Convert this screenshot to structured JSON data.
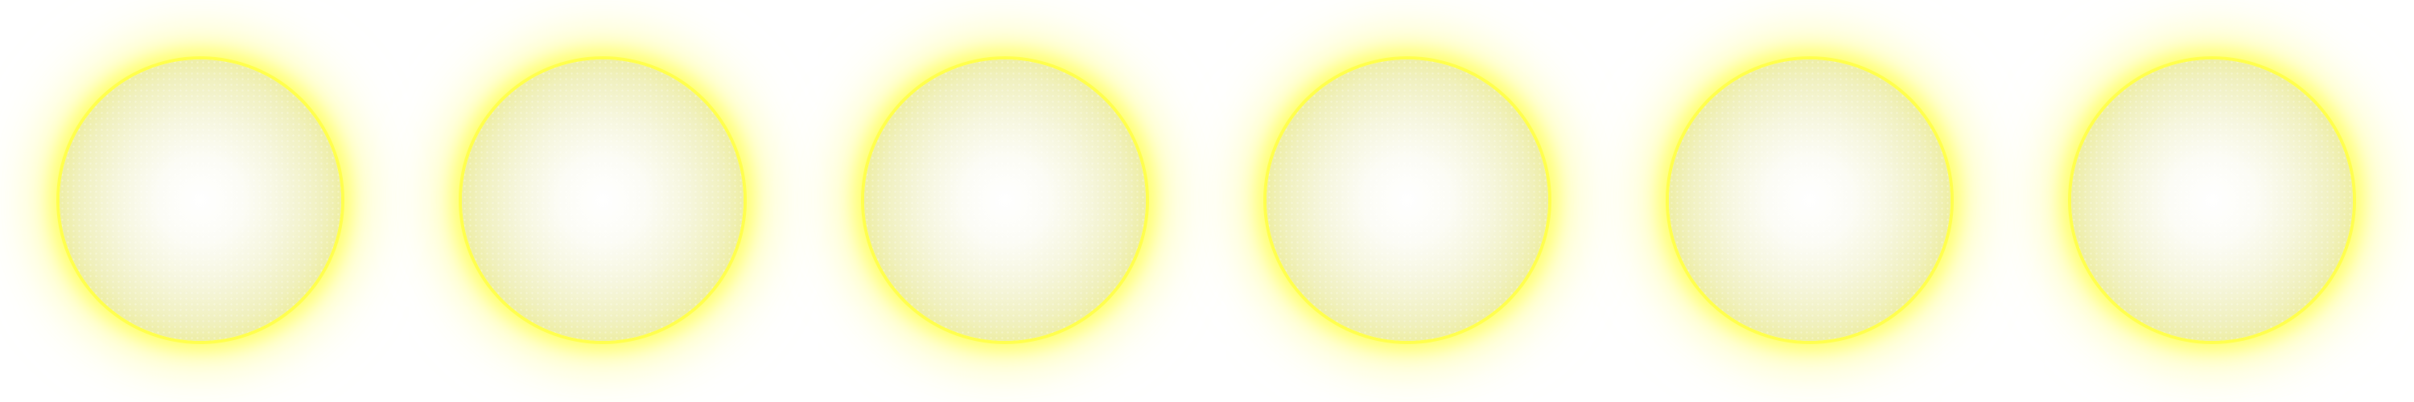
{
  "orbs": {
    "count": 6,
    "core_color": "#ffffff",
    "mid_color": "#f2f2c8",
    "rim_color": "#ffff3c",
    "glow_color": "#ffff80",
    "background_color": "#ffffff"
  }
}
